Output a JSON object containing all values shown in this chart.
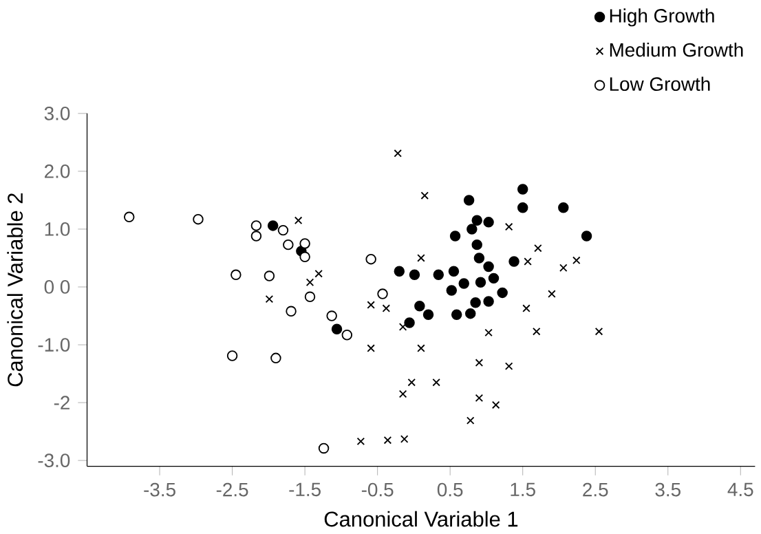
{
  "chart_data": {
    "type": "scatter",
    "xlabel": "Canonical Variable 1",
    "ylabel": "Canonical Variable 2",
    "xlim": [
      -4.5,
      4.7
    ],
    "ylim": [
      -3.1,
      3.0
    ],
    "xticks": [
      -3.5,
      -2.5,
      -1.5,
      -0.5,
      0.5,
      1.5,
      2.5,
      3.5,
      4.5
    ],
    "yticks": [
      {
        "value": 3,
        "label": "3.0"
      },
      {
        "value": 2,
        "label": "2.0"
      },
      {
        "value": 1,
        "label": "1.0"
      },
      {
        "value": 0,
        "label": "0 0"
      },
      {
        "value": -1,
        "label": "-1.0"
      },
      {
        "value": -2,
        "label": "-2"
      },
      {
        "value": -3,
        "label": "-3.0"
      }
    ],
    "legend": "top right",
    "grid": false,
    "series": [
      {
        "name": "High Growth",
        "color": "#000000",
        "marker": "circle",
        "x": [
          -1.94,
          -1.55,
          -1.06,
          1.5,
          0.76,
          1.5,
          2.06,
          0.87,
          1.03,
          0.8,
          0.57,
          2.38,
          0.87,
          0.9,
          1.38,
          -0.2,
          0.01,
          0.34,
          0.55,
          1.03,
          0.52,
          0.69,
          0.92,
          1.1,
          1.22,
          0.08,
          0.2,
          -0.06,
          0.59,
          0.78,
          0.85,
          1.03
        ],
        "values": [
          1.06,
          0.62,
          -0.73,
          1.69,
          1.5,
          1.37,
          1.37,
          1.15,
          1.12,
          1.0,
          0.88,
          0.88,
          0.73,
          0.5,
          0.44,
          0.27,
          0.21,
          0.21,
          0.27,
          0.35,
          -0.06,
          0.06,
          0.08,
          0.15,
          -0.1,
          -0.33,
          -0.48,
          -0.62,
          -0.48,
          -0.46,
          -0.27,
          -0.25
        ]
      },
      {
        "name": "Medium Growth",
        "color": "#000000",
        "marker": "cross",
        "x": [
          -1.59,
          -1.31,
          -1.43,
          -1.99,
          -0.59,
          -0.59,
          -0.73,
          -0.22,
          0.15,
          1.31,
          1.71,
          0.1,
          1.57,
          2.06,
          2.24,
          1.9,
          -0.38,
          1.55,
          -0.15,
          0.1,
          1.03,
          1.69,
          2.55,
          0.9,
          1.31,
          -0.03,
          0.31,
          -0.15,
          0.9,
          1.13,
          0.78,
          -0.36,
          -0.13
        ],
        "values": [
          1.15,
          0.23,
          0.08,
          -0.21,
          -0.31,
          -1.06,
          -2.67,
          2.31,
          1.58,
          1.04,
          0.67,
          0.5,
          0.44,
          0.33,
          0.46,
          -0.12,
          -0.37,
          -0.37,
          -0.69,
          -1.06,
          -0.79,
          -0.77,
          -0.77,
          -1.31,
          -1.37,
          -1.65,
          -1.65,
          -1.85,
          -1.92,
          -2.04,
          -2.31,
          -2.65,
          -2.63
        ]
      },
      {
        "name": "Low Growth",
        "color": "#ffffff",
        "marker": "circle",
        "x": [
          -3.92,
          -2.97,
          -2.17,
          -2.17,
          -1.8,
          -1.73,
          -1.5,
          -1.5,
          -0.59,
          -2.45,
          -1.99,
          -1.43,
          -1.69,
          -1.13,
          -0.92,
          -2.5,
          -1.9,
          -1.24,
          -0.43
        ],
        "values": [
          1.21,
          1.17,
          1.06,
          0.88,
          0.98,
          0.73,
          0.75,
          0.52,
          0.48,
          0.21,
          0.19,
          -0.17,
          -0.42,
          -0.5,
          -0.83,
          -1.19,
          -1.23,
          -2.79,
          -0.12
        ]
      }
    ]
  }
}
